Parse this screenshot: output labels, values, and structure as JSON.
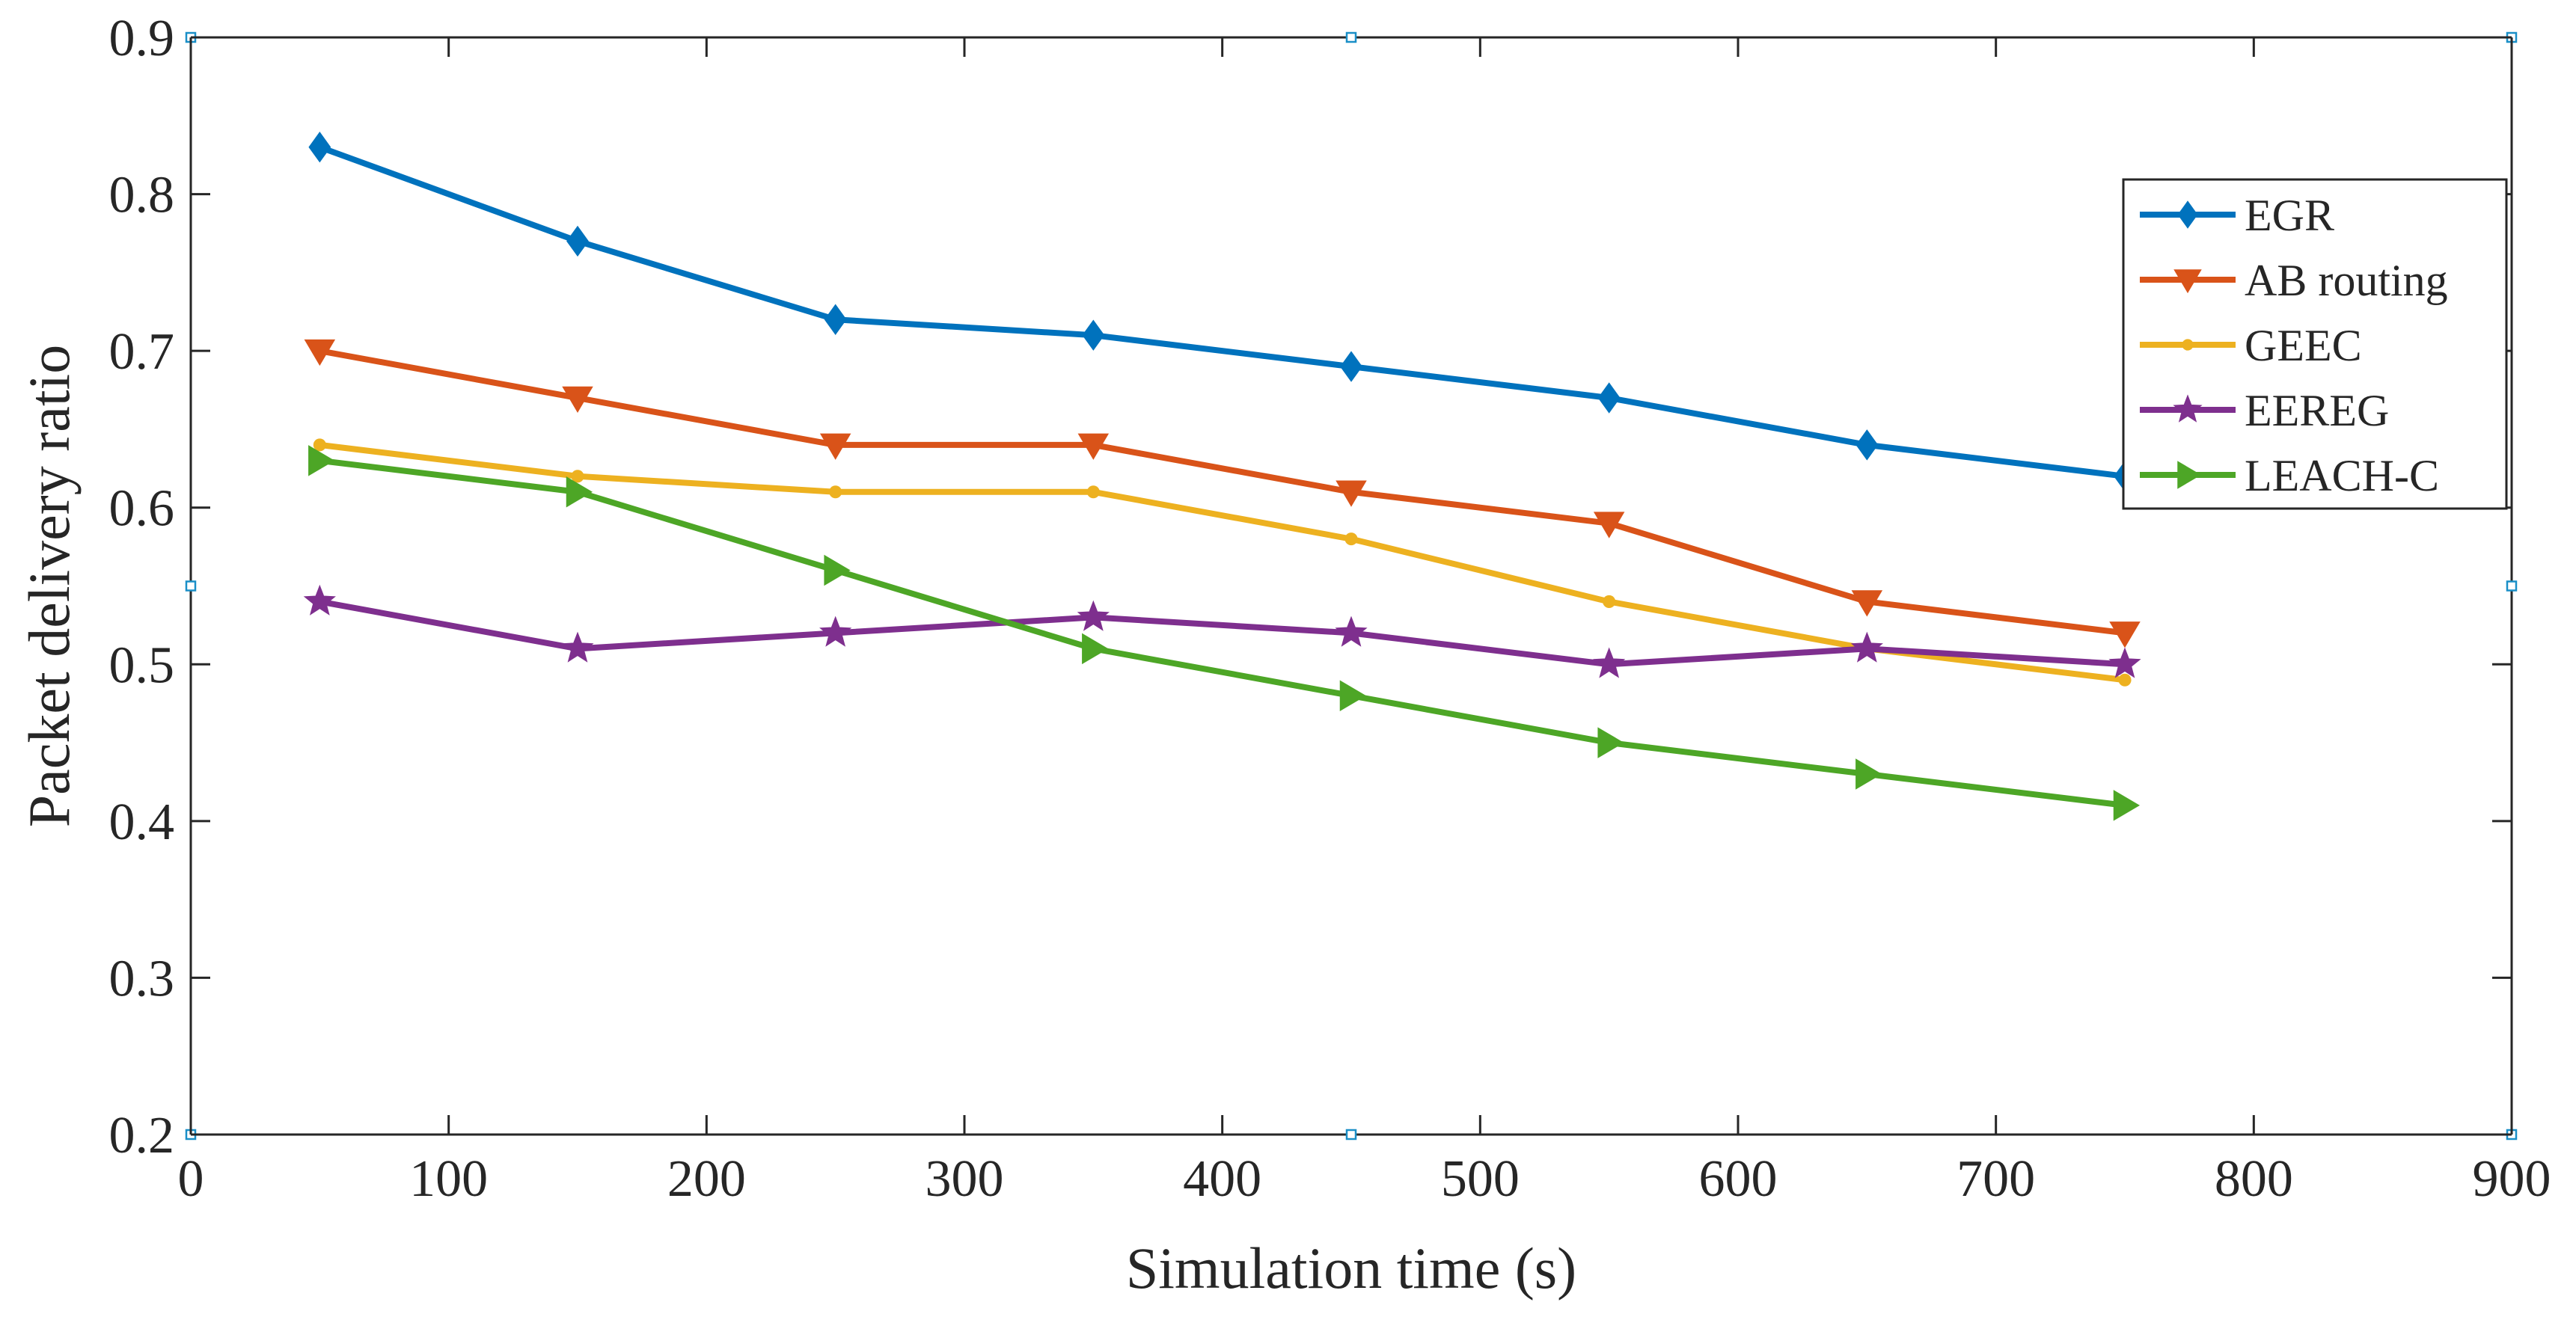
{
  "chart_data": {
    "type": "line",
    "xlabel": "Simulation time (s)",
    "ylabel": "Packet delivery ratio",
    "xlim": [
      0,
      900
    ],
    "ylim": [
      0.2,
      0.9
    ],
    "xticks": [
      0,
      100,
      200,
      300,
      400,
      500,
      600,
      700,
      800,
      900
    ],
    "yticks": [
      0.2,
      0.3,
      0.4,
      0.5,
      0.6,
      0.7,
      0.8,
      0.9
    ],
    "xtick_labels": [
      "0",
      "100",
      "200",
      "300",
      "400",
      "500",
      "600",
      "700",
      "800",
      "900"
    ],
    "ytick_labels": [
      "0.2",
      "0.3",
      "0.4",
      "0.5",
      "0.6",
      "0.7",
      "0.8",
      "0.9"
    ],
    "grid": false,
    "legend_position": "top-right",
    "x": [
      50,
      150,
      250,
      350,
      450,
      550,
      650,
      750
    ],
    "series": [
      {
        "name": "EGR",
        "color": "#0072BD",
        "marker": "diamond",
        "values": [
          0.83,
          0.77,
          0.72,
          0.71,
          0.69,
          0.67,
          0.64,
          0.62
        ]
      },
      {
        "name": "AB routing",
        "color": "#D95319",
        "marker": "triangle-down",
        "values": [
          0.7,
          0.67,
          0.64,
          0.64,
          0.61,
          0.59,
          0.54,
          0.52
        ]
      },
      {
        "name": "GEEC",
        "color": "#EDB120",
        "marker": "dot",
        "values": [
          0.64,
          0.62,
          0.61,
          0.61,
          0.58,
          0.54,
          0.51,
          0.49
        ]
      },
      {
        "name": "EEREG",
        "color": "#7E2F8E",
        "marker": "star",
        "values": [
          0.54,
          0.51,
          0.52,
          0.53,
          0.52,
          0.5,
          0.51,
          0.5
        ]
      },
      {
        "name": "LEACH-C",
        "color": "#4DA626",
        "marker": "triangle-right",
        "values": [
          0.63,
          0.61,
          0.56,
          0.51,
          0.48,
          0.45,
          0.43,
          0.41
        ]
      }
    ]
  }
}
